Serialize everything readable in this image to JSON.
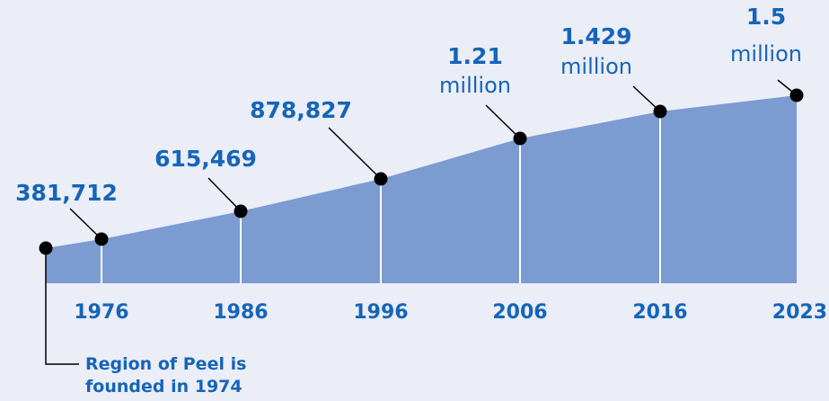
{
  "chart_data": {
    "type": "area",
    "x": [
      1974,
      1976,
      1986,
      1996,
      2006,
      2016,
      2023
    ],
    "y": [
      300000,
      381712,
      615469,
      878827,
      1210000,
      1429000,
      1500000
    ],
    "tick_labels": [
      "1976",
      "1986",
      "1996",
      "2006",
      "2016",
      "2023"
    ],
    "data_labels": [
      {
        "bold": "381,712",
        "unit": ""
      },
      {
        "bold": "615,469",
        "unit": ""
      },
      {
        "bold": "878,827",
        "unit": ""
      },
      {
        "bold": "1.21",
        "unit": "million"
      },
      {
        "bold": "1.429",
        "unit": "million"
      },
      {
        "bold": "1.5",
        "unit": "million"
      }
    ],
    "annotation": [
      "Region of Peel is",
      "founded in 1974"
    ],
    "colors": {
      "fill": "#7b9bd1",
      "text": "#1565b8",
      "background": "#ebedf7",
      "line": "#000000"
    }
  }
}
